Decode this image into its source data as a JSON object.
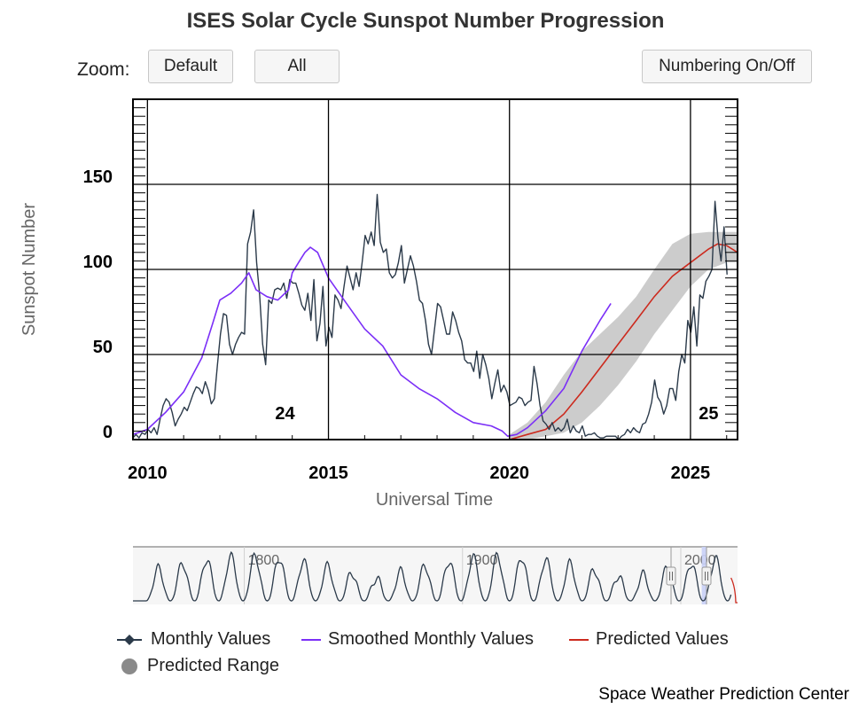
{
  "title": "ISES Solar Cycle Sunspot Number Progression",
  "zoom": {
    "label": "Zoom:",
    "default_label": "Default",
    "all_label": "All"
  },
  "numbering_label": "Numbering On/Off",
  "colors": {
    "monthly": "#2b3a4a",
    "smoothed": "#7b2ff7",
    "predicted": "#cc2a1e",
    "range": "#c9c9c9",
    "navigator_mask": "#c9d0f7"
  },
  "legend": {
    "monthly": "Monthly Values",
    "smoothed": "Smoothed Monthly Values",
    "predicted": "Predicted Values",
    "range": "Predicted Range"
  },
  "credit": "Space Weather Prediction Center",
  "chart_data": {
    "type": "line",
    "xlabel": "Universal Time",
    "ylabel": "Sunspot Number",
    "xlim": [
      2009.6,
      2026.3
    ],
    "ylim": [
      0,
      200
    ],
    "x_ticks": [
      2010,
      2015,
      2020,
      2025
    ],
    "y_ticks": [
      0,
      50,
      100,
      150
    ],
    "cycle_labels": [
      {
        "label": "24",
        "x": 2013.8,
        "y": 12
      },
      {
        "label": "25",
        "x": 2025.5,
        "y": 12
      }
    ],
    "series": [
      {
        "name": "Monthly Values",
        "x_start": 2009.6,
        "step": 0.0833,
        "values": [
          1,
          3,
          1,
          4,
          3,
          6,
          4,
          7,
          3,
          12,
          20,
          24,
          22,
          16,
          8,
          12,
          15,
          19,
          17,
          22,
          27,
          31,
          30,
          27,
          34,
          29,
          21,
          24,
          44,
          62,
          74,
          73,
          56,
          50,
          56,
          60,
          63,
          62,
          115,
          122,
          135,
          104,
          85,
          56,
          44,
          82,
          80,
          88,
          89,
          88,
          92,
          83,
          94,
          92,
          92,
          86,
          79,
          76,
          86,
          70,
          94,
          58,
          68,
          90,
          55,
          66,
          60,
          85,
          82,
          77,
          90,
          102,
          95,
          88,
          98,
          90,
          104,
          120,
          115,
          122,
          114,
          144,
          116,
          110,
          112,
          98,
          95,
          97,
          104,
          114,
          92,
          100,
          108,
          102,
          93,
          82,
          80,
          70,
          56,
          50,
          65,
          80,
          78,
          70,
          62,
          62,
          75,
          70,
          63,
          58,
          47,
          45,
          45,
          40,
          52,
          36,
          50,
          44,
          36,
          24,
          33,
          41,
          28,
          32,
          28,
          20,
          21,
          22,
          25,
          24,
          20,
          22,
          23,
          43,
          33,
          20,
          11,
          9,
          6,
          10,
          5,
          7,
          5,
          7,
          12,
          4,
          8,
          5,
          4,
          8,
          2,
          3,
          3,
          4,
          2,
          1,
          1,
          2,
          2,
          2,
          2,
          0,
          2,
          3,
          6,
          4,
          7,
          5,
          4,
          9,
          10,
          15,
          22,
          35,
          25,
          22,
          15,
          20,
          30,
          30,
          23,
          40,
          50,
          45,
          70,
          63,
          78,
          55,
          85,
          83,
          93,
          96,
          100,
          140,
          118,
          105,
          125,
          97
        ]
      },
      {
        "name": "Smoothed Monthly Values",
        "x": [
          2009.6,
          2010,
          2010.5,
          2011,
          2011.5,
          2011.8,
          2012,
          2012.3,
          2012.6,
          2012.8,
          2013,
          2013.3,
          2013.6,
          2013.9,
          2014,
          2014.2,
          2014.35,
          2014.5,
          2014.7,
          2015,
          2015.5,
          2016,
          2016.5,
          2017,
          2017.5,
          2018,
          2018.5,
          2019,
          2019.5,
          2019.8,
          2019.95,
          2020.2,
          2020.5,
          2021,
          2021.5,
          2022,
          2022.5,
          2022.8
        ],
        "values": [
          3,
          6,
          16,
          28,
          48,
          68,
          82,
          86,
          92,
          98,
          88,
          84,
          82,
          88,
          98,
          105,
          110,
          113,
          110,
          95,
          80,
          65,
          55,
          38,
          30,
          24,
          16,
          10,
          8,
          5,
          2,
          3,
          7,
          17,
          30,
          52,
          70,
          80
        ]
      },
      {
        "name": "Predicted Values",
        "x": [
          2020,
          2020.5,
          2021,
          2021.5,
          2022,
          2022.5,
          2023,
          2023.5,
          2024,
          2024.5,
          2025,
          2025.5,
          2025.75,
          2026,
          2026.3
        ],
        "values": [
          0,
          3,
          6,
          15,
          28,
          42,
          56,
          70,
          84,
          96,
          104,
          112,
          115,
          114,
          110
        ]
      },
      {
        "name": "Predicted Range",
        "x": [
          2020,
          2020.5,
          2021,
          2021.5,
          2022,
          2022.5,
          2023,
          2023.5,
          2024,
          2024.5,
          2025,
          2025.5,
          2026,
          2026.3
        ],
        "upper": [
          3,
          10,
          22,
          38,
          52,
          62,
          72,
          84,
          100,
          115,
          121,
          122,
          122,
          122
        ],
        "lower": [
          0,
          0,
          2,
          4,
          10,
          20,
          32,
          46,
          62,
          76,
          90,
          100,
          104,
          104
        ]
      }
    ],
    "navigator": {
      "xlim": [
        1749,
        2026
      ],
      "ticks": [
        1800,
        1900,
        2000
      ],
      "selection": [
        2009.6,
        2026.3
      ]
    }
  }
}
